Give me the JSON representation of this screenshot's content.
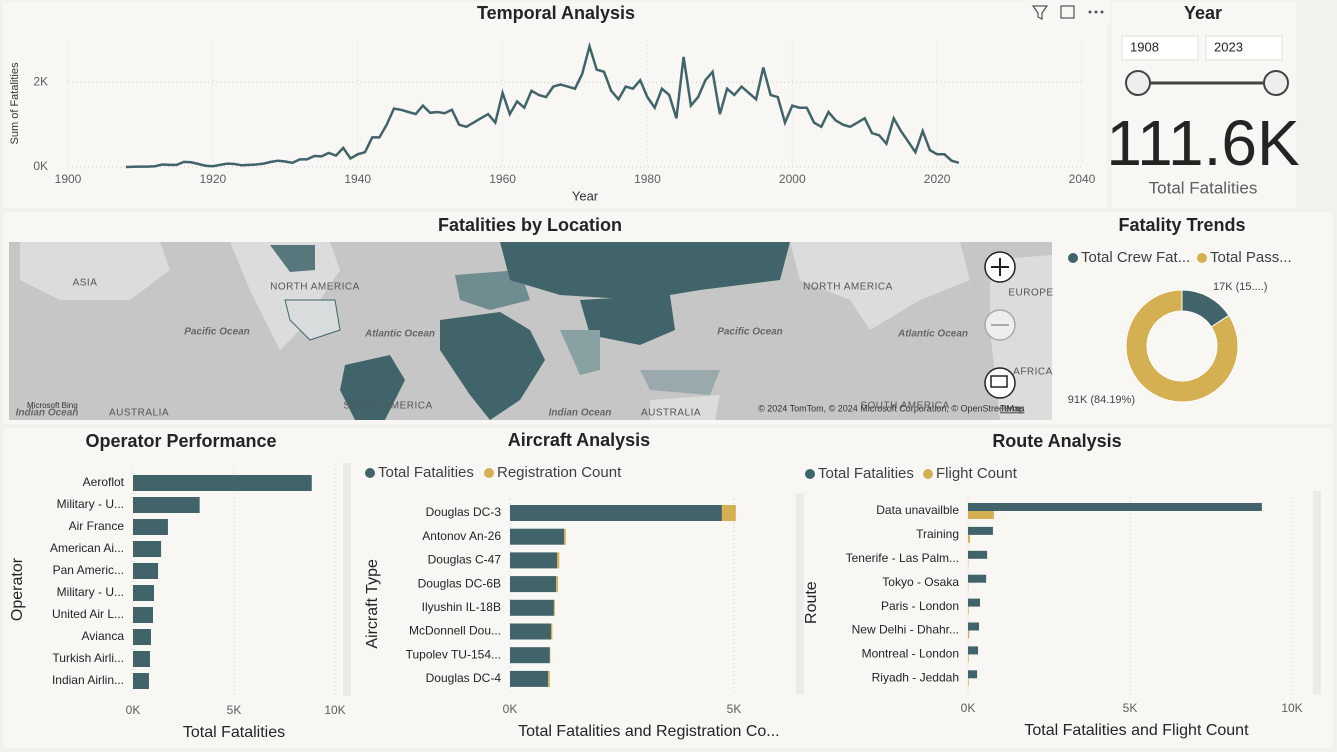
{
  "chart_data": [
    {
      "type": "line",
      "title": "Temporal Analysis",
      "x_label": "Year",
      "y_label": "Sum of Fatalities",
      "color": "#41646a",
      "x": [
        1908,
        1909,
        1910,
        1911,
        1912,
        1913,
        1914,
        1915,
        1916,
        1917,
        1918,
        1919,
        1920,
        1921,
        1922,
        1923,
        1924,
        1925,
        1926,
        1927,
        1928,
        1929,
        1930,
        1931,
        1932,
        1933,
        1934,
        1935,
        1936,
        1937,
        1938,
        1939,
        1940,
        1941,
        1942,
        1943,
        1944,
        1945,
        1946,
        1947,
        1948,
        1949,
        1950,
        1951,
        1952,
        1953,
        1954,
        1955,
        1956,
        1957,
        1958,
        1959,
        1960,
        1961,
        1962,
        1963,
        1964,
        1965,
        1966,
        1967,
        1968,
        1969,
        1970,
        1971,
        1972,
        1973,
        1974,
        1975,
        1976,
        1977,
        1978,
        1979,
        1980,
        1981,
        1982,
        1983,
        1984,
        1985,
        1986,
        1987,
        1988,
        1989,
        1990,
        1991,
        1992,
        1993,
        1994,
        1995,
        1996,
        1997,
        1998,
        1999,
        2000,
        2001,
        2002,
        2003,
        2004,
        2005,
        2006,
        2007,
        2008,
        2009,
        2010,
        2011,
        2012,
        2013,
        2014,
        2015,
        2016,
        2017,
        2018,
        2019,
        2020,
        2021,
        2022,
        2023
      ],
      "values": [
        0,
        5,
        10,
        10,
        20,
        60,
        50,
        50,
        120,
        110,
        70,
        30,
        20,
        50,
        80,
        70,
        40,
        50,
        60,
        80,
        120,
        150,
        130,
        100,
        180,
        180,
        260,
        250,
        330,
        270,
        450,
        200,
        300,
        350,
        700,
        700,
        1000,
        1380,
        1350,
        1300,
        1250,
        1450,
        1280,
        1300,
        1270,
        1350,
        1000,
        950,
        1050,
        1150,
        1250,
        1050,
        1750,
        1250,
        1550,
        1400,
        1800,
        1700,
        1650,
        1900,
        1950,
        1900,
        1850,
        2200,
        2850,
        2300,
        2250,
        1800,
        1600,
        1900,
        1850,
        2050,
        1650,
        1400,
        1850,
        1700,
        1150,
        2600,
        1450,
        1650,
        2050,
        2250,
        1250,
        1850,
        1700,
        1900,
        1750,
        1600,
        2350,
        1700,
        1650,
        1050,
        1450,
        1400,
        1400,
        1050,
        950,
        1300,
        1100,
        1000,
        950,
        1050,
        1150,
        800,
        750,
        550,
        1150,
        850,
        600,
        350,
        850,
        400,
        300,
        300,
        150,
        100
      ],
      "xlim": [
        1900,
        2040
      ],
      "xticks": [
        1900,
        1920,
        1940,
        1960,
        1980,
        2000,
        2020,
        2040
      ],
      "ylim": [
        0,
        3000
      ],
      "yticks": [
        {
          "value": 0,
          "label": "0K"
        },
        {
          "value": 2000,
          "label": "2K"
        }
      ],
      "grid": true
    },
    {
      "type": "donut",
      "title": "Fatality Trends",
      "series": [
        {
          "name": "Total Crew Fat...",
          "color": "#41646a"
        },
        {
          "name": "Total Pass...",
          "color": "#d4b052"
        }
      ],
      "values": [
        17089,
        91000
      ],
      "value_labels": [
        "17K (15....)",
        "91K (84.19%)"
      ]
    },
    {
      "type": "bar",
      "orientation": "horizontal",
      "title": "Operator Performance",
      "x_label": "Total Fatalities",
      "y_label": "Operator",
      "color": "#41646a",
      "categories": [
        "Aeroflot",
        "Military - U...",
        "Air France",
        "American Ai...",
        "Pan Americ...",
        "Military - U...",
        "United Air L...",
        "Avianca",
        "Turkish Airli...",
        "Indian Airlin..."
      ],
      "values": [
        8850,
        3300,
        1730,
        1390,
        1240,
        1040,
        990,
        890,
        840,
        790
      ],
      "xlim": [
        0,
        10000
      ],
      "xticks": [
        {
          "value": 0,
          "label": "0K"
        },
        {
          "value": 5000,
          "label": "5K"
        },
        {
          "value": 10000,
          "label": "10K"
        }
      ],
      "grid": true
    },
    {
      "type": "bar",
      "orientation": "horizontal",
      "stacked": true,
      "title": "Aircraft Analysis",
      "x_label": "Total Fatalities and Registration Co...",
      "y_label": "Aircraft Type",
      "categories": [
        "Douglas DC-3",
        "Antonov An-26",
        "Douglas C-47",
        "Douglas DC-6B",
        "Ilyushin IL-18B",
        "McDonnell Dou...",
        "Tupolev TU-154...",
        "Douglas DC-4"
      ],
      "series": [
        {
          "name": "Total Fatalities",
          "color": "#41646a",
          "values": [
            4730,
            1205,
            1050,
            1030,
            980,
            915,
            890,
            850
          ]
        },
        {
          "name": "Registration Count",
          "color": "#d4b052",
          "values": [
            310,
            40,
            50,
            40,
            20,
            30,
            10,
            40
          ]
        }
      ],
      "xlim": [
        0,
        6200
      ],
      "xticks": [
        {
          "value": 0,
          "label": "0K"
        },
        {
          "value": 5000,
          "label": "5K"
        }
      ],
      "grid": true
    },
    {
      "type": "bar",
      "orientation": "horizontal",
      "stacked": false,
      "title": "Route Analysis",
      "x_label": "Total Fatalities and Flight Count",
      "y_label": "Route",
      "categories": [
        "Data unavailble",
        "Training",
        "Tenerife - Las Palm...",
        "Tokyo - Osaka",
        "Paris - London",
        "New Delhi - Dhahr...",
        "Montreal - London",
        "Riyadh - Jeddah"
      ],
      "series": [
        {
          "name": "Total Fatalities",
          "color": "#41646a",
          "values": [
            9070,
            770,
            590,
            560,
            370,
            340,
            310,
            280
          ]
        },
        {
          "name": "Flight Count",
          "color": "#d4b052",
          "values": [
            800,
            60,
            10,
            10,
            20,
            40,
            20,
            20
          ]
        }
      ],
      "xlim": [
        0,
        10400
      ],
      "xticks": [
        {
          "value": 0,
          "label": "0K"
        },
        {
          "value": 5000,
          "label": "5K"
        },
        {
          "value": 10000,
          "label": "10K"
        }
      ],
      "grid": true
    }
  ],
  "slicer": {
    "title": "Year",
    "start": "1908",
    "end": "2023"
  },
  "card": {
    "value": "111.6K",
    "label": "Total Fatalities"
  },
  "map": {
    "title": "Fatalities by Location",
    "labels": [
      "ASIA",
      "NORTH AMERICA",
      "Pacific Ocean",
      "Atlantic Ocean",
      "SOUTH AMERICA",
      "Indian Ocean",
      "Pacific Ocean",
      "NORTH AMERICA",
      "Atlantic Ocean",
      "EUROPE",
      "AFRICA",
      "SOUTH AMERICA",
      "AUSTRALIA",
      "Indian Ocean",
      "AUSTRALIA"
    ],
    "attribution": "© 2024 TomTom, © 2024 Microsoft Corporation, © OpenStreetMap",
    "terms": "Terms",
    "brand": "Microsoft Bing"
  }
}
